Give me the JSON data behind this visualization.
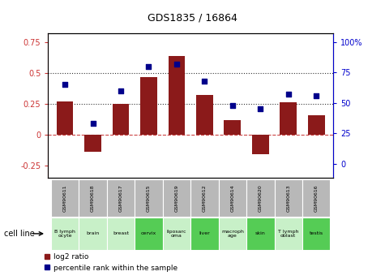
{
  "title": "GDS1835 / 16864",
  "samples": [
    "GSM90611",
    "GSM90618",
    "GSM90617",
    "GSM90615",
    "GSM90619",
    "GSM90612",
    "GSM90614",
    "GSM90620",
    "GSM90613",
    "GSM90616"
  ],
  "cell_lines": [
    "B lymph\nocyte",
    "brain",
    "breast",
    "cervix",
    "liposarc\noma",
    "liver",
    "macroph\nage",
    "skin",
    "T lymph\noblast",
    "testis"
  ],
  "cell_line_highlight": [
    false,
    false,
    false,
    true,
    false,
    true,
    false,
    true,
    false,
    true
  ],
  "log2_ratio": [
    0.27,
    -0.14,
    0.25,
    0.47,
    0.64,
    0.32,
    0.12,
    -0.16,
    0.26,
    0.16
  ],
  "percentile_rank": [
    65,
    33,
    60,
    80,
    82,
    68,
    48,
    45,
    57,
    56
  ],
  "bar_color": "#8B1A1A",
  "dot_color": "#00008B",
  "ylim_left": [
    -0.35,
    0.82
  ],
  "ylim_right": [
    -11.67,
    107
  ],
  "yticks_left": [
    -0.25,
    0.0,
    0.25,
    0.5,
    0.75
  ],
  "yticks_right": [
    0,
    25,
    50,
    75,
    100
  ],
  "ytick_labels_left": [
    "-0.25",
    "0",
    "0.25",
    "0.5",
    "0.75"
  ],
  "ytick_labels_right": [
    "0",
    "25",
    "50",
    "75",
    "100%"
  ],
  "hline_values": [
    0.0,
    0.25,
    0.5
  ],
  "hline_styles": [
    "--",
    ":",
    ":"
  ],
  "hline_colors": [
    "#CC4444",
    "#333333",
    "#333333"
  ],
  "cell_line_bg_normal": "#c8f0c8",
  "cell_line_bg_highlight": "#55cc55",
  "gsm_bg": "#b8b8b8",
  "legend_bar_label": "log2 ratio",
  "legend_dot_label": "percentile rank within the sample",
  "xlabel_left": "cell line"
}
